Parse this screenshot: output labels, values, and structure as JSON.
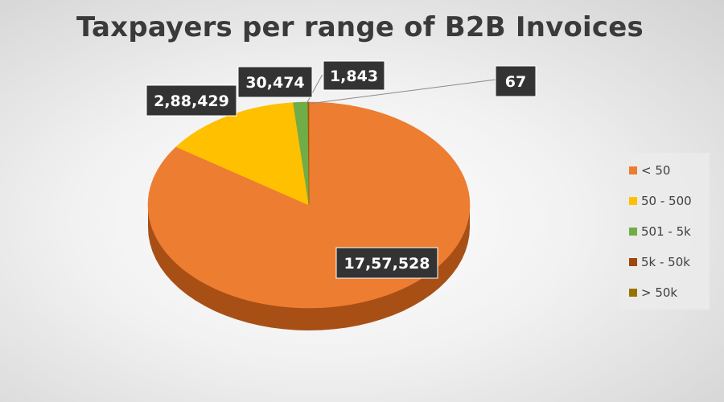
{
  "chart_data": {
    "type": "pie",
    "title": "Taxpayers per range of B2B Invoices",
    "categories": [
      "< 50",
      "50 - 500",
      "501 - 5k",
      "5k - 50k",
      "> 50k"
    ],
    "values": [
      1757528,
      288429,
      30474,
      1843,
      67
    ],
    "data_labels": [
      "17,57,528",
      "2,88,429",
      "30,474",
      "1,843",
      "67"
    ],
    "colors": [
      "#ED7D31",
      "#FFC000",
      "#70AD47",
      "#9E480E",
      "#997300"
    ],
    "side_colors": [
      "#A84F16",
      "#B28600",
      "#4E7A31",
      "#6E3209",
      "#6B5000"
    ],
    "legend_position": "right",
    "style": "3d"
  }
}
